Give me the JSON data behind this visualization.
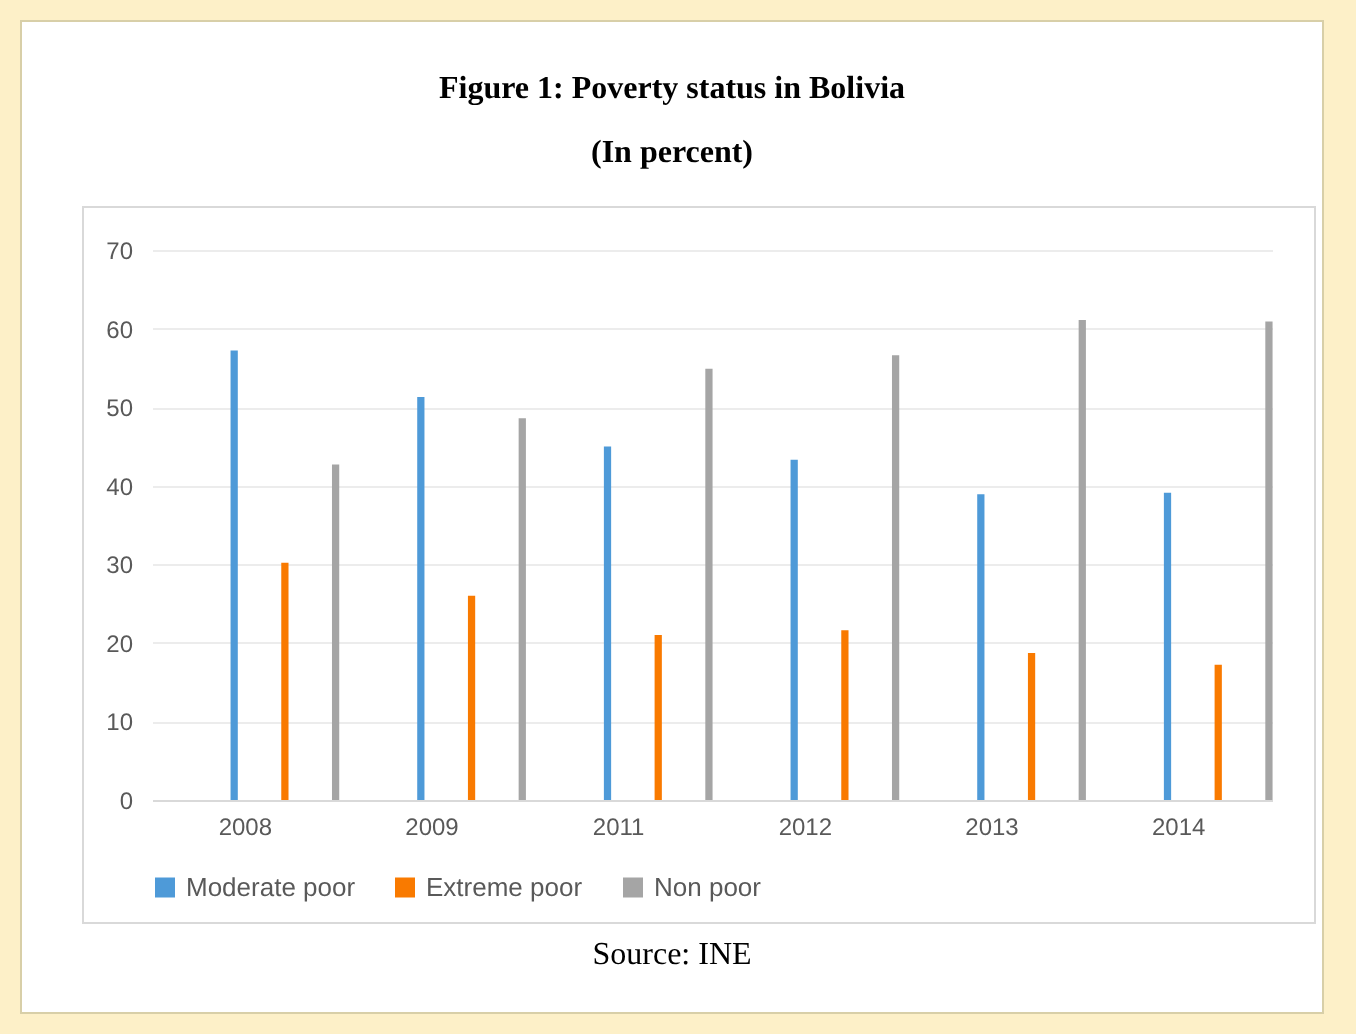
{
  "chart_data": {
    "type": "bar",
    "title": "Figure 1: Poverty status in Bolivia",
    "subtitle": "(In percent)",
    "categories": [
      "2008",
      "2009",
      "2011",
      "2012",
      "2013",
      "2014"
    ],
    "series": [
      {
        "name": "Moderate poor",
        "color": "#4e9ad8",
        "values": [
          57.2,
          51.3,
          45.0,
          43.3,
          38.9,
          39.1
        ]
      },
      {
        "name": "Extreme poor",
        "color": "#f97a00",
        "values": [
          30.2,
          26.0,
          21.0,
          21.6,
          18.7,
          17.2
        ]
      },
      {
        "name": "Non poor",
        "color": "#a5a5a5",
        "values": [
          42.7,
          48.6,
          54.9,
          56.6,
          61.1,
          60.9
        ]
      }
    ],
    "ylim": [
      0,
      70
    ],
    "yticks": [
      0,
      10,
      20,
      30,
      40,
      50,
      60,
      70
    ],
    "grid": "y",
    "legend": "bottom",
    "annotations": [
      "Source: INE"
    ]
  }
}
